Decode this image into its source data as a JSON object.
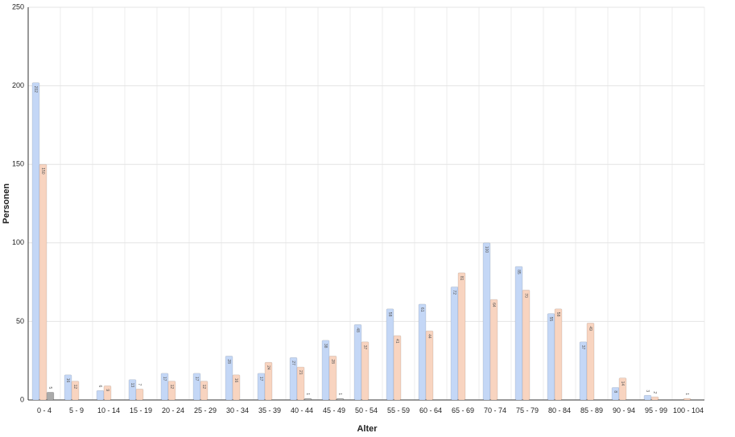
{
  "chart_data": {
    "type": "bar",
    "x_label": "Alter",
    "y_label": "Personen",
    "categories": [
      "0 - 4",
      "5 - 9",
      "10 - 14",
      "15 - 19",
      "20 - 24",
      "25 - 29",
      "30 - 34",
      "35 - 39",
      "40 - 44",
      "45 - 49",
      "50 - 54",
      "55 - 59",
      "60 - 64",
      "65 - 69",
      "70 - 74",
      "75 - 79",
      "80 - 84",
      "85 - 89",
      "90 - 94",
      "95 - 99",
      "100 - 104"
    ],
    "series": [
      {
        "color": "#c4d7f6",
        "values": [
          202,
          16,
          6,
          13,
          17,
          17,
          28,
          17,
          27,
          38,
          48,
          58,
          61,
          72,
          100,
          85,
          55,
          37,
          8,
          3,
          null
        ]
      },
      {
        "color": "#f8d4c0",
        "values": [
          150,
          12,
          9,
          7,
          12,
          12,
          16,
          24,
          21,
          28,
          37,
          41,
          44,
          81,
          64,
          70,
          58,
          49,
          14,
          2,
          1
        ]
      },
      {
        "color": "#aaaaaa",
        "values": [
          5,
          null,
          null,
          null,
          null,
          null,
          null,
          null,
          1,
          1,
          null,
          null,
          null,
          null,
          null,
          null,
          null,
          null,
          null,
          null,
          null
        ]
      }
    ],
    "ylim": [
      0,
      250
    ],
    "yticks": [
      0,
      50,
      100,
      150,
      200,
      250
    ],
    "grid": true
  }
}
